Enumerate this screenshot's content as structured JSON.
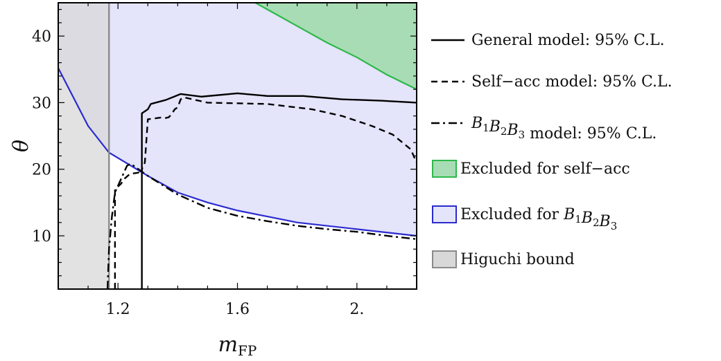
{
  "chart_data": {
    "type": "line",
    "title": "",
    "xlabel": {
      "main": "m",
      "sub": "FP"
    },
    "ylabel": "θ",
    "xlim": [
      1.0,
      2.2
    ],
    "ylim": [
      2,
      45
    ],
    "xticks": [
      {
        "value": 1.2,
        "label": "1.2"
      },
      {
        "value": 1.6,
        "label": "1.6"
      },
      {
        "value": 2.0,
        "label": "2."
      }
    ],
    "yticks": [
      {
        "value": 10,
        "label": "10"
      },
      {
        "value": 20,
        "label": "20"
      },
      {
        "value": 30,
        "label": "30"
      },
      {
        "value": 40,
        "label": "40"
      }
    ],
    "grid": false,
    "legend_position": "right",
    "regions": [
      {
        "key": "self_acc",
        "name": "Excluded for self−acc",
        "fill": "#a8dcb4",
        "stroke": "#2db84a",
        "boundary": {
          "x": [
            1.66,
            1.8,
            1.9,
            2.0,
            2.1,
            2.2
          ],
          "y": [
            45,
            41.5,
            39.0,
            36.8,
            34.2,
            32.0
          ]
        }
      },
      {
        "key": "b1b2b3",
        "name": "Excluded for B1B2B3",
        "fill": "#e4e4fa",
        "stroke": "#2a2ad0",
        "boundary": {
          "x": [
            1.0,
            1.1,
            1.17,
            1.3,
            1.4,
            1.5,
            1.6,
            1.8,
            2.0,
            2.2
          ],
          "y": [
            35.2,
            26.5,
            22.5,
            19.0,
            16.5,
            15.0,
            13.8,
            12.0,
            11.0,
            10.0
          ]
        }
      },
      {
        "key": "higuchi",
        "name": "Higuchi bound",
        "fill": "#d8d8d8",
        "stroke": "#8a8a8a",
        "x_max": 1.17
      }
    ],
    "series": [
      {
        "key": "general",
        "name": "General model: 95% C.L.",
        "style": "solid",
        "x": [
          1.28,
          1.28,
          1.3,
          1.31,
          1.36,
          1.41,
          1.48,
          1.6,
          1.7,
          1.82,
          1.95,
          2.08,
          2.2
        ],
        "y": [
          2,
          28.4,
          29.0,
          29.8,
          30.4,
          31.3,
          30.9,
          31.4,
          31.0,
          31.0,
          30.5,
          30.3,
          30.0
        ]
      },
      {
        "key": "self_acc",
        "name": "Self−acc model: 95% C.L.",
        "style": "dashed",
        "x": [
          1.19,
          1.19,
          1.21,
          1.22,
          1.24,
          1.27,
          1.28,
          1.28,
          1.29,
          1.3,
          1.35,
          1.36,
          1.37,
          1.38,
          1.39,
          1.4,
          1.41,
          1.42,
          1.5,
          1.7,
          1.85,
          1.95,
          2.05,
          2.12,
          2.18,
          2.2
        ],
        "y": [
          2,
          17.0,
          17.8,
          18.5,
          19.3,
          19.5,
          19.2,
          20.0,
          21.0,
          27.5,
          27.8,
          27.7,
          27.8,
          28.3,
          29.0,
          29.3,
          30.5,
          30.8,
          30.0,
          29.8,
          29.0,
          28.0,
          26.5,
          25.2,
          23.0,
          21.0
        ]
      },
      {
        "key": "b1b2b3",
        "name": "B1B2B3 model: 95% C.L.",
        "style": "dashdot",
        "x": [
          1.165,
          1.17,
          1.18,
          1.19,
          1.2,
          1.21,
          1.22,
          1.23,
          1.24,
          1.25,
          1.3,
          1.4,
          1.5,
          1.6,
          1.7,
          1.8,
          1.9,
          2.0,
          2.1,
          2.2
        ],
        "y": [
          2,
          8.0,
          13.0,
          16.5,
          17.5,
          18.5,
          19.5,
          20.5,
          20.8,
          20.6,
          19.0,
          16.2,
          14.2,
          13.0,
          12.2,
          11.5,
          11.0,
          10.6,
          10.0,
          9.5
        ]
      }
    ],
    "legend": [
      {
        "kind": "line",
        "style": "solid",
        "label": "General model: 95% C.L."
      },
      {
        "kind": "line",
        "style": "dashed",
        "label": "Self−acc model: 95% C.L."
      },
      {
        "kind": "line",
        "style": "dashdot",
        "label_sym": "B",
        "label_subs": [
          "1",
          "2",
          "3"
        ],
        "label_rest": " model: 95% C.L."
      },
      {
        "kind": "box",
        "region": "self_acc",
        "label": "Excluded for self−acc"
      },
      {
        "kind": "box",
        "region": "b1b2b3",
        "label_prefix": "Excluded for ",
        "label_sym": "B",
        "label_subs": [
          "1",
          "2",
          "3"
        ]
      },
      {
        "kind": "box",
        "region": "higuchi",
        "label": "Higuchi bound"
      }
    ]
  }
}
